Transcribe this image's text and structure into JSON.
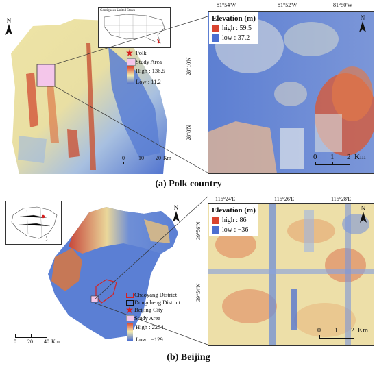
{
  "panel_a": {
    "caption": "(a) Polk country",
    "inset_title": "Contiguous United States",
    "legend": {
      "marker": "Polk",
      "area": "Study Area",
      "high": "High : 136.5",
      "low": "Low : 11.2"
    },
    "scalebar": {
      "ticks": [
        "0",
        "10",
        "20"
      ],
      "unit": "Km"
    },
    "north": "N",
    "zoom": {
      "lon_ticks": [
        "81°54'W",
        "81°52'W",
        "81°50'W"
      ],
      "lat_ticks": [
        "28°10'N",
        "28°8'N"
      ],
      "elevation_title": "Elevation (m)",
      "high": "high : 59.5",
      "low": "low : 37.2",
      "scalebar": {
        "ticks": [
          "0",
          "1",
          "2"
        ],
        "unit": "Km"
      },
      "north": "N"
    }
  },
  "panel_b": {
    "caption": "(b) Beijing",
    "legend": {
      "district1": "Chaoyang District",
      "district2": "Dongcheng District",
      "city": "Beijing City",
      "area": "Study Area",
      "high": "High : 2254",
      "low": "Low : −129"
    },
    "scalebar": {
      "ticks": [
        "0",
        "20",
        "40"
      ],
      "unit": "Km"
    },
    "north": "N",
    "zoom": {
      "lon_ticks": [
        "116°24'E",
        "116°26'E",
        "116°28'E"
      ],
      "lat_ticks": [
        "39°56'N",
        "39°54'N"
      ],
      "elevation_title": "Elevation (m)",
      "high": "high : 86",
      "low": "low : −36",
      "scalebar": {
        "ticks": [
          "0",
          "1",
          "2"
        ],
        "unit": "Km"
      },
      "north": "N"
    }
  },
  "colors": {
    "high": "#d9442f",
    "mid": "#f3ecb0",
    "low": "#4c6fd0",
    "study_area": "#f4c6ea",
    "marker": "#d62020"
  }
}
